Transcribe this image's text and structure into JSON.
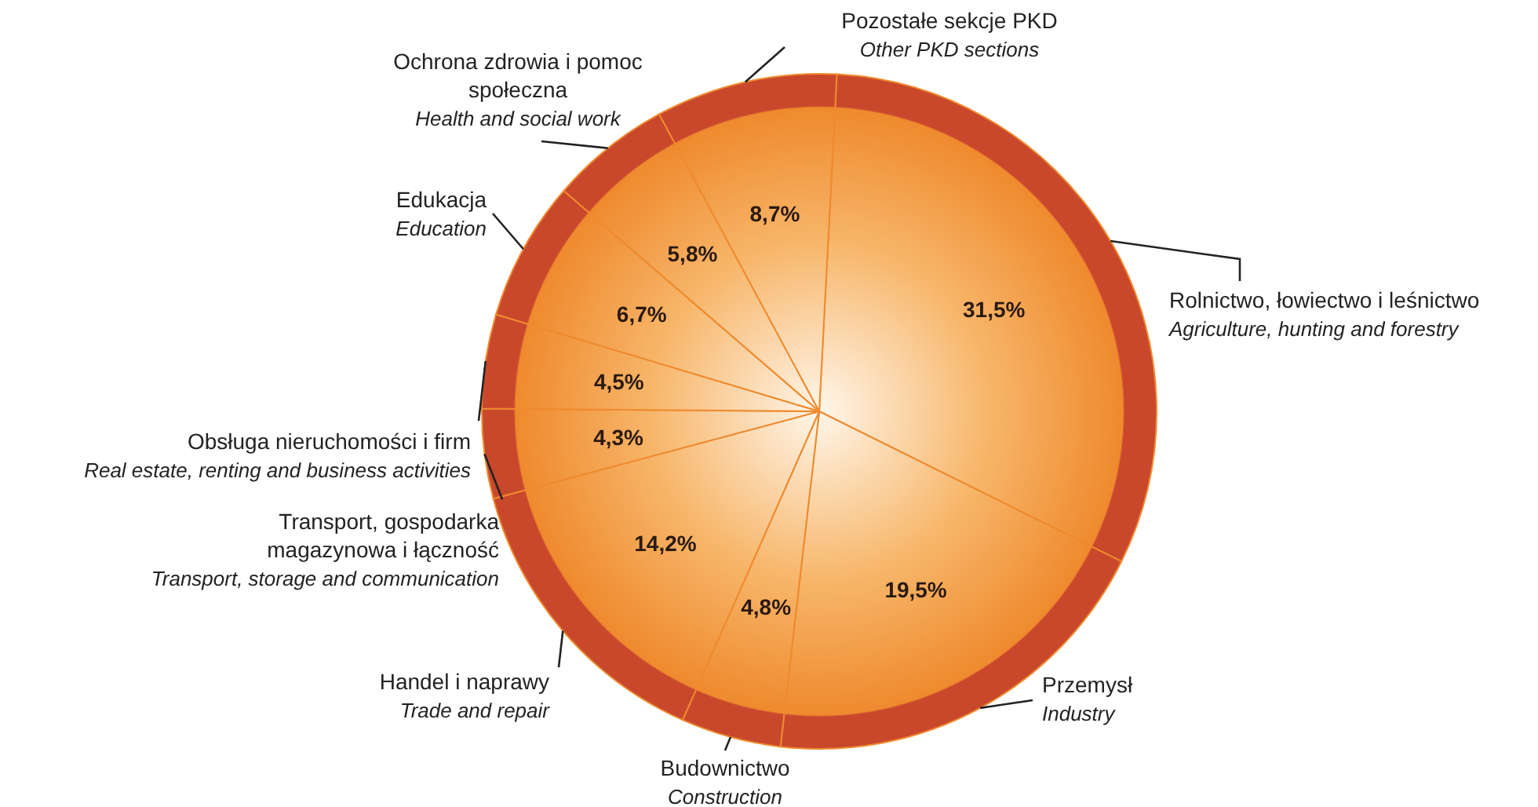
{
  "chart_data": {
    "type": "pie",
    "categories": [
      "Rolnictwo, łowiectwo i leśnictwo\nAgriculture, hunting and forestry",
      "Przemysł\nIndustry",
      "Budownictwo\nConstruction",
      "Handel i naprawy\nTrade and repair",
      "Transport, gospodarka\nmagazynowa i łączność\nTransport, storage and communication",
      "Obsługa nieruchomości i firm\nReal estate, renting and business activities",
      "Edukacja\nEducation",
      "Ochrona zdrowia i pomoc\nspołeczna\nHealth and social work",
      "Pozostałe sekcje PKD\nOther PKD sections"
    ],
    "values": [
      31.5,
      19.5,
      4.8,
      14.2,
      4.3,
      4.5,
      6.7,
      5.8,
      8.7
    ],
    "value_labels": [
      "31,5%",
      "19,5%",
      "4,8%",
      "14,2%",
      "4,3%",
      "4,5%",
      "6,7%",
      "5,8%",
      "8,7%"
    ],
    "colors": [
      "#ef8a2e",
      "#ef8a2e",
      "#ef8a2e",
      "#ef8a2e",
      "#ef8a2e",
      "#ef8a2e",
      "#ef8a2e",
      "#ef8a2e",
      "#ef8a2e"
    ]
  }
}
